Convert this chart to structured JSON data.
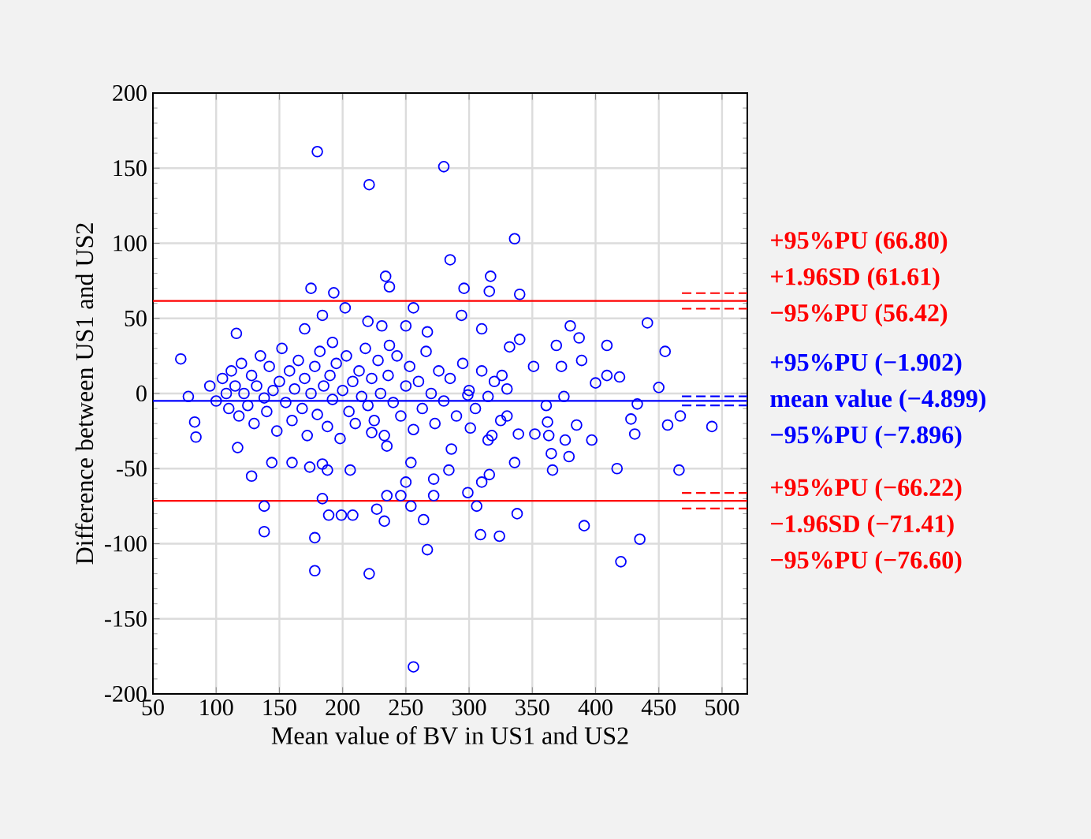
{
  "chart_data": {
    "type": "scatter",
    "xlabel": "Mean value of BV in US1 and US2",
    "ylabel": "Difference between US1 and US2",
    "xlim": [
      50,
      520
    ],
    "ylim": [
      -200,
      200
    ],
    "xticks": [
      50,
      100,
      150,
      200,
      250,
      300,
      350,
      400,
      450,
      500
    ],
    "yticks": [
      -200,
      -150,
      -100,
      -50,
      0,
      50,
      100,
      150,
      200
    ],
    "grid": true,
    "marker": "circle",
    "series": [
      {
        "color": "#0000ff",
        "x": [
          180,
          280,
          221,
          285,
          234,
          237,
          175,
          193,
          202,
          256,
          184,
          220,
          231,
          250,
          116,
          72,
          267,
          170,
          192,
          237,
          336,
          317,
          316,
          296,
          340,
          294,
          310,
          380,
          387,
          441,
          455,
          409,
          369,
          340,
          332,
          389,
          373,
          351,
          326,
          409,
          419,
          450,
          400,
          433,
          467,
          457,
          492,
          431,
          428,
          397,
          385,
          417,
          466,
          379,
          376,
          366,
          365,
          363,
          362,
          352,
          375,
          361,
          339,
          330,
          336,
          315,
          318,
          316,
          310,
          299,
          306,
          338,
          309,
          324,
          391,
          435,
          420,
          284,
          286,
          301,
          299,
          78,
          83,
          84,
          117,
          144,
          160,
          128,
          174,
          188,
          206,
          184,
          138,
          138,
          184,
          189,
          199,
          208,
          178,
          178,
          221,
          256,
          227,
          235,
          233,
          246,
          250,
          254,
          264,
          267,
          272,
          272,
          254,
          235,
          223,
          95,
          100,
          105,
          108,
          110,
          112,
          115,
          118,
          120,
          122,
          125,
          128,
          130,
          132,
          135,
          138,
          140,
          142,
          145,
          148,
          150,
          152,
          155,
          158,
          160,
          162,
          165,
          168,
          170,
          172,
          175,
          178,
          180,
          182,
          185,
          188,
          190,
          192,
          195,
          198,
          200,
          203,
          205,
          208,
          210,
          213,
          215,
          218,
          220,
          223,
          225,
          228,
          230,
          233,
          236,
          240,
          243,
          246,
          250,
          253,
          256,
          260,
          263,
          266,
          270,
          273,
          276,
          280,
          285,
          290,
          295,
          300,
          305,
          310,
          315,
          320,
          325,
          330
        ],
        "values": [
          161,
          151,
          139,
          89,
          78,
          71,
          70,
          67,
          57,
          57,
          52,
          48,
          45,
          45,
          40,
          23,
          41,
          43,
          34,
          32,
          103,
          78,
          68,
          70,
          66,
          52,
          43,
          45,
          37,
          47,
          28,
          32,
          32,
          36,
          31,
          22,
          18,
          18,
          12,
          12,
          11,
          4,
          7,
          -7,
          -15,
          -21,
          -22,
          -27,
          -17,
          -31,
          -21,
          -50,
          -51,
          -42,
          -31,
          -51,
          -40,
          -28,
          -19,
          -27,
          -2,
          -8,
          -27,
          -15,
          -46,
          -31,
          -28,
          -54,
          -59,
          -66,
          -75,
          -80,
          -94,
          -95,
          -88,
          -97,
          -112,
          -51,
          -37,
          -23,
          -1,
          -2,
          -19,
          -29,
          -36,
          -46,
          -46,
          -55,
          -49,
          -51,
          -51,
          -47,
          -75,
          -92,
          -70,
          -81,
          -81,
          -81,
          -96,
          -118,
          -120,
          -182,
          -77,
          -68,
          -85,
          -68,
          -59,
          -75,
          -84,
          -104,
          -68,
          -57,
          -46,
          -35,
          -26,
          5,
          -5,
          10,
          0,
          -10,
          15,
          5,
          -15,
          20,
          0,
          -8,
          12,
          -20,
          5,
          25,
          -3,
          -12,
          18,
          2,
          -25,
          8,
          30,
          -6,
          15,
          -18,
          3,
          22,
          -10,
          10,
          -28,
          0,
          18,
          -14,
          28,
          5,
          -22,
          12,
          -4,
          20,
          -30,
          2,
          25,
          -12,
          8,
          -20,
          15,
          -2,
          30,
          -8,
          10,
          -18,
          22,
          0,
          -28,
          12,
          -6,
          25,
          -15,
          5,
          18,
          -24,
          8,
          -10,
          28,
          0,
          -20,
          15,
          -5,
          10,
          -15,
          20,
          2,
          -10,
          15,
          -2,
          8,
          -18,
          3
        ]
      }
    ],
    "ref_lines": [
      {
        "axis": "y",
        "value": 66.8,
        "label": "+95%PU (66.80)",
        "color": "#ff0000",
        "line_style": "dashed"
      },
      {
        "axis": "y",
        "value": 61.61,
        "label": "+1.96SD (61.61)",
        "color": "#ff0000",
        "line_style": "solid"
      },
      {
        "axis": "y",
        "value": 56.42,
        "label": "−95%PU (56.42)",
        "color": "#ff0000",
        "line_style": "dashed"
      },
      {
        "axis": "y",
        "value": -1.902,
        "label": "+95%PU (−1.902)",
        "color": "#0000ff",
        "line_style": "dashed"
      },
      {
        "axis": "y",
        "value": -4.899,
        "label": "mean value (−4.899)",
        "color": "#0000ff",
        "line_style": "solid"
      },
      {
        "axis": "y",
        "value": -7.896,
        "label": "−95%PU (−7.896)",
        "color": "#0000ff",
        "line_style": "dashed"
      },
      {
        "axis": "y",
        "value": -66.22,
        "label": "+95%PU (−66.22)",
        "color": "#ff0000",
        "line_style": "dashed"
      },
      {
        "axis": "y",
        "value": -71.41,
        "label": "−1.96SD (−71.41)",
        "color": "#ff0000",
        "line_style": "solid"
      },
      {
        "axis": "y",
        "value": -76.6,
        "label": "−95%PU (−76.60)",
        "color": "#ff0000",
        "line_style": "dashed"
      }
    ]
  }
}
